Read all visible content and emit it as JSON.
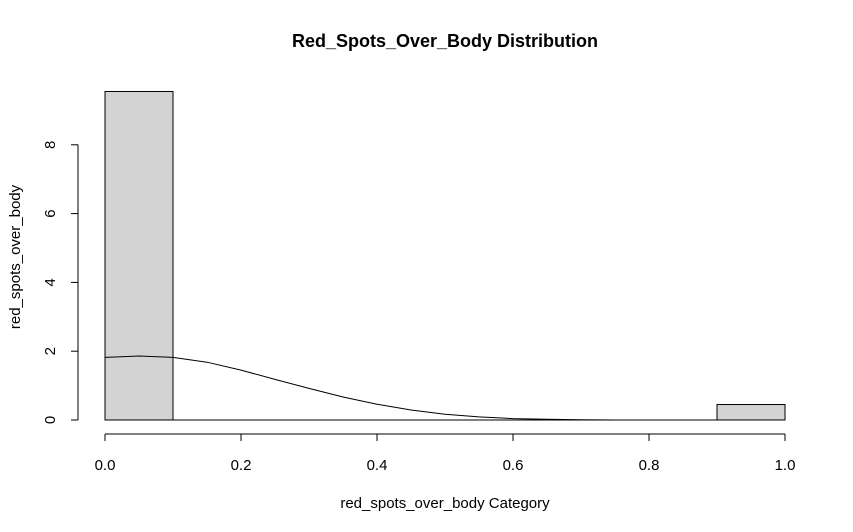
{
  "chart_data": {
    "type": "bar",
    "title": "Red_Spots_Over_Body Distribution",
    "xlabel": "red_spots_over_body Category",
    "ylabel": "red_spots_over_body",
    "xlim": [
      0,
      1
    ],
    "ylim": [
      0,
      9.55
    ],
    "x_ticks": [
      "0.0",
      "0.2",
      "0.4",
      "0.6",
      "0.8",
      "1.0"
    ],
    "x_tick_values": [
      0,
      0.2,
      0.4,
      0.6,
      0.8,
      1.0
    ],
    "y_ticks": [
      "0",
      "2",
      "4",
      "6",
      "8"
    ],
    "y_tick_values": [
      0,
      2,
      4,
      6,
      8
    ],
    "grid": false,
    "bins": [
      {
        "from": 0.0,
        "to": 0.1,
        "value": 9.55
      },
      {
        "from": 0.1,
        "to": 0.2,
        "value": 0
      },
      {
        "from": 0.2,
        "to": 0.3,
        "value": 0
      },
      {
        "from": 0.3,
        "to": 0.4,
        "value": 0
      },
      {
        "from": 0.4,
        "to": 0.5,
        "value": 0
      },
      {
        "from": 0.5,
        "to": 0.6,
        "value": 0
      },
      {
        "from": 0.6,
        "to": 0.7,
        "value": 0
      },
      {
        "from": 0.7,
        "to": 0.8,
        "value": 0
      },
      {
        "from": 0.8,
        "to": 0.9,
        "value": 0
      },
      {
        "from": 0.9,
        "to": 1.0,
        "value": 0.45
      }
    ],
    "density_curve": {
      "x": [
        0.0,
        0.05,
        0.1,
        0.15,
        0.2,
        0.25,
        0.3,
        0.35,
        0.4,
        0.45,
        0.5,
        0.55,
        0.6,
        0.65,
        0.7,
        0.75,
        0.8,
        0.85,
        0.9
      ],
      "y": [
        1.82,
        1.86,
        1.82,
        1.68,
        1.45,
        1.18,
        0.92,
        0.67,
        0.46,
        0.29,
        0.17,
        0.09,
        0.04,
        0.02,
        0.01,
        0.0,
        0.0,
        0.0,
        0.0
      ]
    },
    "bar_fill": "#d3d3d3",
    "bar_stroke": "#000000",
    "curve_color": "#000000"
  }
}
